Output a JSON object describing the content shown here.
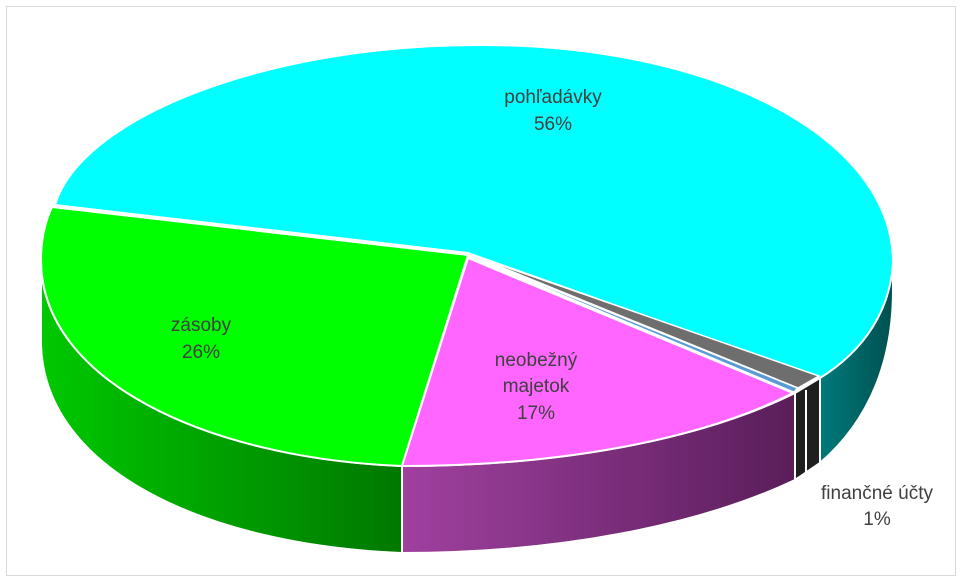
{
  "chart_data": {
    "type": "pie",
    "style": "3d-exploded",
    "title": "",
    "slices": [
      {
        "label": "pohľadávky",
        "percent_label": "56%",
        "value": 56,
        "color": "#00FFFF",
        "side_color": "#006B6B"
      },
      {
        "label": "",
        "percent_label": "",
        "value": 1,
        "color": "#6E6E6E",
        "side_color": "#303030"
      },
      {
        "label": "",
        "percent_label": "",
        "value": 0.2,
        "color": "#5B9BD5",
        "side_color": "#2E4E6E"
      },
      {
        "label": "finančné účty",
        "percent_label": "1%",
        "value": 1,
        "color": "#FFFFFF",
        "side_color": "#303030"
      },
      {
        "label": "neobežný majetok",
        "percent_label": "17%",
        "value": 17,
        "color": "#FF66FF",
        "side_color": "#6E2A6E"
      },
      {
        "label": "zásoby",
        "percent_label": "26%",
        "value": 26,
        "color": "#00FF00",
        "side_color": "#00A000"
      }
    ],
    "legend": "none"
  }
}
